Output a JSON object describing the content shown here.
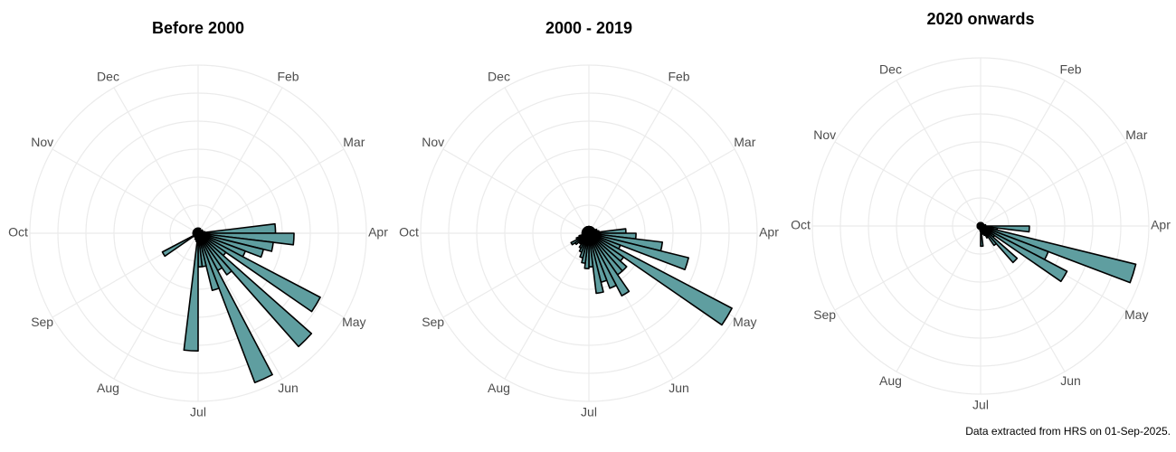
{
  "chart_data": [
    {
      "type": "polar_bar",
      "title": "Before 2000",
      "theta_labels": [
        null,
        "Feb",
        "Mar",
        "Apr",
        "May",
        "Jun",
        "Jul",
        "Aug",
        "Sep",
        "Oct",
        "Nov",
        "Dec"
      ],
      "values": [
        3,
        3,
        3,
        3,
        2,
        2,
        2,
        3,
        3,
        3,
        3,
        4,
        46,
        57,
        45,
        40,
        30,
        82,
        20,
        90,
        30,
        25,
        95,
        35,
        20,
        20,
        70,
        5,
        4,
        4,
        3,
        3,
        3,
        3,
        24,
        3,
        3,
        3,
        3,
        3,
        3,
        3,
        3,
        3,
        3,
        3,
        3,
        3,
        3,
        3,
        3,
        3
      ],
      "ylim": [
        0,
        100
      ],
      "color": "#5f9ea0",
      "grid": true
    },
    {
      "type": "polar_bar",
      "title": "2000 - 2019",
      "theta_labels": [
        null,
        "Feb",
        "Mar",
        "Apr",
        "May",
        "Jun",
        "Jul",
        "Aug",
        "Sep",
        "Oct",
        "Nov",
        "Dec"
      ],
      "values": [
        4,
        4,
        4,
        4,
        4,
        4,
        4,
        4,
        4,
        5,
        5,
        6,
        22,
        28,
        44,
        61,
        20,
        96,
        25,
        30,
        30,
        42,
        35,
        30,
        36,
        20,
        21,
        18,
        15,
        12,
        10,
        8,
        8,
        10,
        12,
        8,
        6,
        4,
        4,
        4,
        4,
        4,
        4,
        4,
        4,
        4,
        4,
        4,
        4,
        4,
        4,
        4
      ],
      "ylim": [
        0,
        100
      ],
      "color": "#5f9ea0",
      "grid": true
    },
    {
      "type": "polar_bar",
      "title": "2020 onwards",
      "theta_labels": [
        null,
        "Feb",
        "Mar",
        "Apr",
        "May",
        "Jun",
        "Jul",
        "Aug",
        "Sep",
        "Oct",
        "Nov",
        "Dec"
      ],
      "values": [
        2,
        2,
        2,
        2,
        2,
        2,
        2,
        2,
        2,
        2,
        2,
        3,
        3,
        29,
        10,
        95,
        43,
        58,
        10,
        29,
        14,
        8,
        6,
        5,
        4,
        12,
        3,
        2,
        2,
        2,
        2,
        2,
        2,
        2,
        2,
        2,
        2,
        2,
        2,
        2,
        2,
        2,
        2,
        2,
        2,
        2,
        2,
        2,
        2,
        2,
        2,
        2
      ],
      "ylim": [
        0,
        100
      ],
      "color": "#5f9ea0",
      "grid": true
    }
  ],
  "caption": "Data extracted from HRS on 01-Sep-2025."
}
